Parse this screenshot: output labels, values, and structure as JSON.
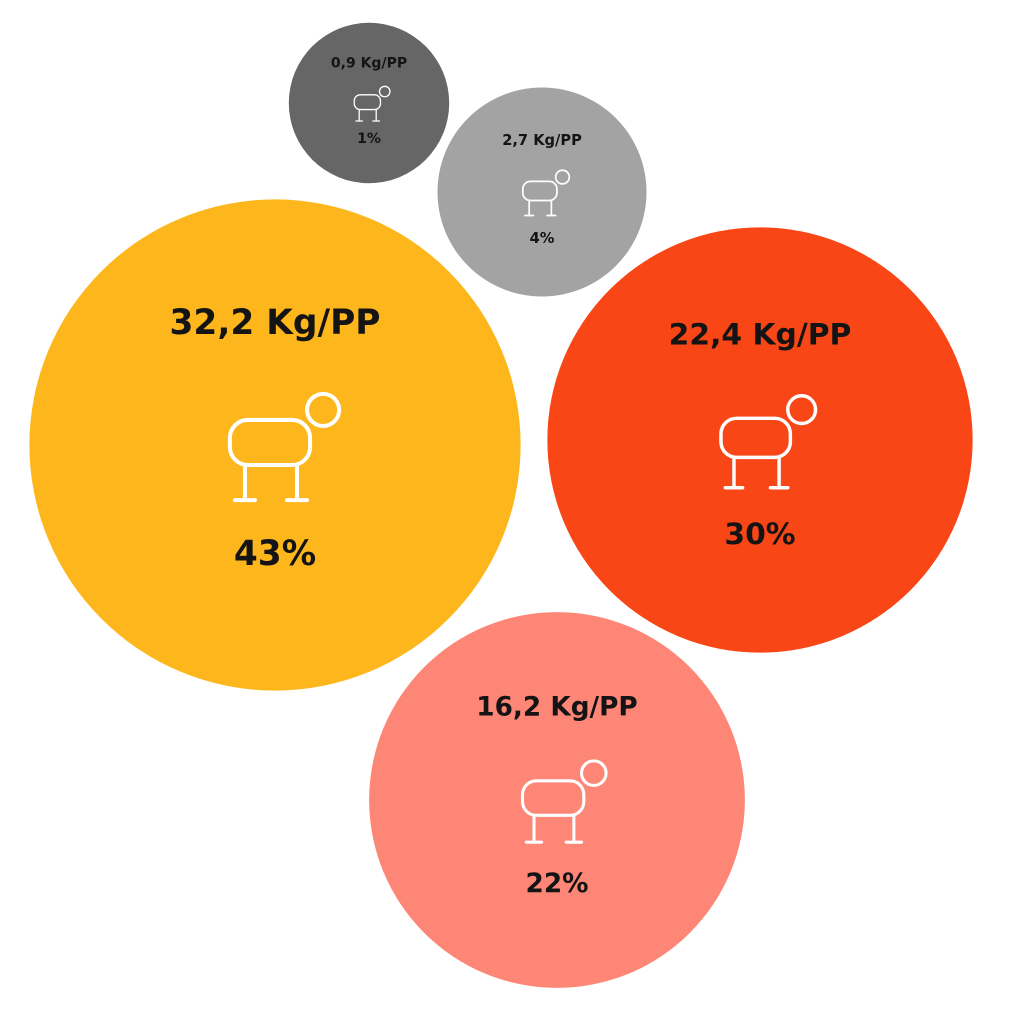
{
  "chart_data": {
    "type": "bubble",
    "colors": [
      "#fdb71c",
      "#f94616",
      "#fd8676",
      "#a3a3a3",
      "#666666"
    ],
    "series": [
      {
        "values": [
          32.2,
          22.4,
          16.2,
          2.7,
          0.9
        ],
        "value_labels": [
          "32,2 Kg/PP",
          "22,4 Kg/PP",
          "16,2 Kg/PP",
          "2,7 Kg/PP",
          "0,9 Kg/PP"
        ]
      },
      {
        "values": [
          43,
          30,
          22,
          4,
          1
        ],
        "value_labels": [
          "43%",
          "30%",
          "22%",
          "4%",
          "1%"
        ]
      }
    ]
  }
}
